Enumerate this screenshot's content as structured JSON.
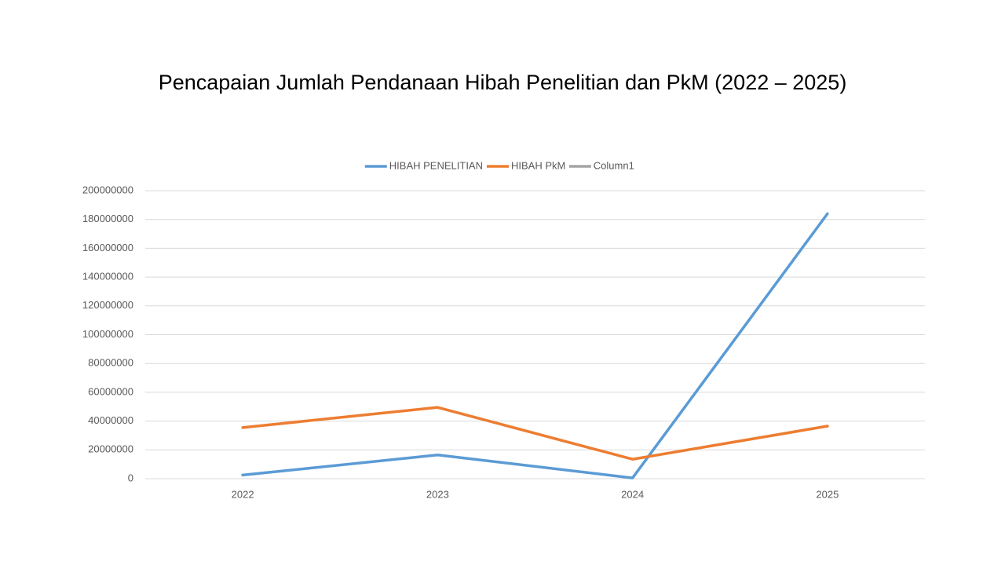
{
  "chart_data": {
    "type": "line",
    "title": "Pencapaian Jumlah Pendanaan Hibah Penelitian dan PkM (2022 – 2025)",
    "categories": [
      "2022",
      "2023",
      "2024",
      "2025"
    ],
    "series": [
      {
        "name": "HIBAH PENELITIAN",
        "color": "#5b9bd5",
        "values": [
          2500000,
          16500000,
          500000,
          184000000
        ]
      },
      {
        "name": "HIBAH PkM",
        "color": "#ed7d31",
        "values": [
          35500000,
          49500000,
          13500000,
          36500000
        ]
      },
      {
        "name": "Column1",
        "color": "#a5a5a5",
        "values": [
          null,
          null,
          null,
          null
        ]
      }
    ],
    "ylim": [
      0,
      200000000
    ],
    "yticks": [
      0,
      20000000,
      40000000,
      60000000,
      80000000,
      100000000,
      120000000,
      140000000,
      160000000,
      180000000,
      200000000
    ],
    "grid": true,
    "legend": "top"
  }
}
